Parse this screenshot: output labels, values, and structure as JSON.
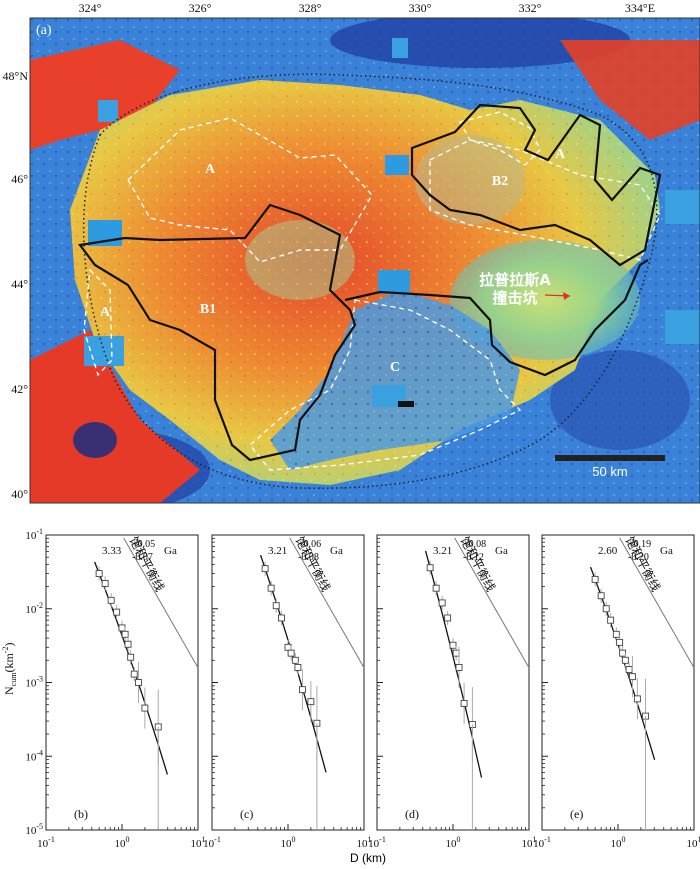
{
  "map": {
    "panel_label": "(a)",
    "lon_ticks": [
      "324°",
      "326°",
      "328°",
      "330°",
      "332°",
      "334°E"
    ],
    "lat_ticks": [
      "48°N",
      "46°",
      "44°",
      "42°",
      "40°"
    ],
    "region_labels": [
      "A",
      "A",
      "A",
      "B1",
      "B2",
      "C"
    ],
    "crater_label_line1": "拉普拉斯A",
    "crater_label_line2": "撞击坑",
    "scale_bar_label": "50 km",
    "colors": {
      "red_basalt": "#e63a22",
      "orange": "#f29a35",
      "yellow": "#e8d84a",
      "green": "#8fd08a",
      "blue_highland": "#3d8fe0",
      "dark_blue": "#1c3c9c",
      "boundary_black": "#111111",
      "boundary_white_dashed": "#ffffff"
    }
  },
  "chart_data": [
    {
      "type": "scatter",
      "panel_label": "(b)",
      "age": "3.33",
      "age_plus": "+0.05",
      "age_minus": "-0.07",
      "age_unit": "Ga",
      "saturation_label": "饱和平衡线",
      "x": [
        0.5,
        0.6,
        0.72,
        0.85,
        1.0,
        1.1,
        1.2,
        1.3,
        1.45,
        1.65,
        2.0,
        3.0
      ],
      "y": [
        0.03,
        0.022,
        0.013,
        0.009,
        0.0055,
        0.0045,
        0.0033,
        0.0022,
        0.0013,
        0.001,
        0.00045,
        0.00025
      ]
    },
    {
      "type": "scatter",
      "panel_label": "(c)",
      "age": "3.21",
      "age_plus": "+0.06",
      "age_minus": "-0.08",
      "age_unit": "Ga",
      "saturation_label": "饱和平衡线",
      "x": [
        0.5,
        0.6,
        0.7,
        0.82,
        1.0,
        1.1,
        1.25,
        1.35,
        1.55,
        2.0,
        2.4
      ],
      "y": [
        0.035,
        0.019,
        0.011,
        0.0075,
        0.003,
        0.0025,
        0.002,
        0.0016,
        0.0008,
        0.00055,
        0.00028
      ]
    },
    {
      "type": "scatter",
      "panel_label": "(d)",
      "age": "3.21",
      "age_plus": "+0.08",
      "age_minus": "-0.12",
      "age_unit": "Ga",
      "saturation_label": "饱和平衡线",
      "x": [
        0.5,
        0.6,
        0.72,
        0.85,
        1.0,
        1.1,
        1.2,
        1.4,
        1.8
      ],
      "y": [
        0.036,
        0.019,
        0.012,
        0.0075,
        0.0032,
        0.0025,
        0.0016,
        0.00052,
        0.00027
      ]
    },
    {
      "type": "scatter",
      "panel_label": "(e)",
      "age": "2.60",
      "age_plus": "+0.19",
      "age_minus": "-0.20",
      "age_unit": "Ga",
      "saturation_label": "饱和平衡线",
      "x": [
        0.5,
        0.6,
        0.7,
        0.8,
        0.95,
        1.05,
        1.15,
        1.25,
        1.4,
        1.55,
        1.8,
        2.3
      ],
      "y": [
        0.025,
        0.015,
        0.01,
        0.007,
        0.0045,
        0.0035,
        0.0025,
        0.002,
        0.0015,
        0.0012,
        0.0006,
        0.00035
      ]
    }
  ],
  "axes": {
    "ylabel": "N",
    "ylabel_sub": "cum",
    "ylabel_unit": "(km",
    "ylabel_exp": "-2",
    "ylabel_close": ")",
    "xlabel": "D (km)",
    "x_tick_base": "10",
    "x_tick_exps": [
      "-1",
      "0",
      "1"
    ],
    "y_tick_base": "10",
    "y_tick_exps": [
      "-1",
      "-2",
      "-3",
      "-4",
      "-5"
    ],
    "x_log_range": [
      -1,
      1
    ],
    "y_log_range": [
      -5,
      -1
    ],
    "log_scale": true
  }
}
